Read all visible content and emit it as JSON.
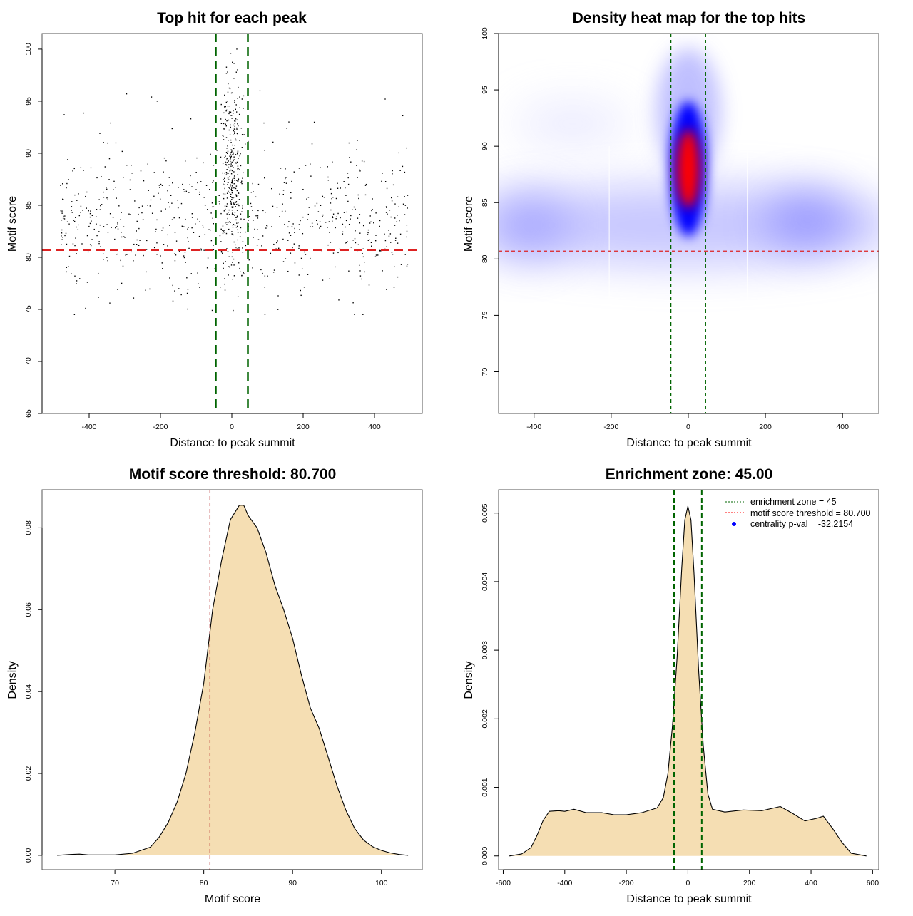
{
  "chart_data": [
    {
      "type": "scatter",
      "title": "Top hit for each peak",
      "xlabel": "Distance to peak summit",
      "ylabel": "Motif score",
      "xlim": [
        -532,
        534
      ],
      "ylim": [
        65,
        101.5
      ],
      "xticks": [
        -400,
        -200,
        0,
        200,
        400
      ],
      "yticks": [
        65,
        70,
        75,
        80,
        85,
        90,
        95,
        100
      ],
      "enrichment_zone": [
        -45,
        45
      ],
      "threshold": 80.7,
      "points": [
        [
          -480,
          86.9
        ],
        [
          -470,
          93.7
        ],
        [
          -465,
          82.3
        ],
        [
          -460,
          89.4
        ],
        [
          -455,
          80.1
        ],
        [
          -450,
          84.5
        ],
        [
          -440,
          78.2
        ],
        [
          -430,
          86.1
        ],
        [
          -420,
          81.3
        ],
        [
          -410,
          75.1
        ],
        [
          -405,
          77.6
        ],
        [
          -395,
          88.6
        ],
        [
          -380,
          83.2
        ],
        [
          -370,
          91.9
        ],
        [
          -360,
          79.8
        ],
        [
          -350,
          85.7
        ],
        [
          -340,
          92.9
        ],
        [
          -330,
          87.3
        ],
        [
          -320,
          76.9
        ],
        [
          -310,
          82.4
        ],
        [
          -295,
          95.7
        ],
        [
          -285,
          84.1
        ],
        [
          -270,
          80.2
        ],
        [
          -255,
          88.3
        ],
        [
          -240,
          78.6
        ],
        [
          -225,
          95.4
        ],
        [
          -210,
          83.6
        ],
        [
          -195,
          86.9
        ],
        [
          -180,
          81.1
        ],
        [
          -165,
          75.8
        ],
        [
          -150,
          84.8
        ],
        [
          -130,
          79.5
        ],
        [
          -115,
          93.3
        ],
        [
          -100,
          86.5
        ],
        [
          -90,
          77.1
        ],
        [
          -80,
          82.9
        ],
        [
          -60,
          89.9
        ],
        [
          -55,
          74.9
        ],
        [
          -30,
          84.2
        ],
        [
          -25,
          82.3
        ],
        [
          -20,
          88.1
        ],
        [
          -18,
          79.6
        ],
        [
          -15,
          91.5
        ],
        [
          -12,
          97.8
        ],
        [
          -10,
          86.7
        ],
        [
          -8,
          93.8
        ],
        [
          -5,
          96.2
        ],
        [
          -3,
          99.6
        ],
        [
          0,
          90.3
        ],
        [
          2,
          87.5
        ],
        [
          4,
          92.7
        ],
        [
          6,
          85.1
        ],
        [
          8,
          94.9
        ],
        [
          10,
          89.1
        ],
        [
          12,
          83.6
        ],
        [
          14,
          100
        ],
        [
          15,
          91.9
        ],
        [
          18,
          86.2
        ],
        [
          20,
          80.9
        ],
        [
          22,
          95.4
        ],
        [
          25,
          88.8
        ],
        [
          30,
          84.7
        ],
        [
          35,
          78.4
        ],
        [
          60,
          86.3
        ],
        [
          75,
          81.7
        ],
        [
          90,
          92.9
        ],
        [
          100,
          78.2
        ],
        [
          115,
          84.9
        ],
        [
          130,
          76.3
        ],
        [
          150,
          88.5
        ],
        [
          165,
          82.1
        ],
        [
          160,
          93.0
        ],
        [
          195,
          79.9
        ],
        [
          210,
          85.6
        ],
        [
          225,
          90.9
        ],
        [
          240,
          83.2
        ],
        [
          255,
          77.8
        ],
        [
          270,
          87.7
        ],
        [
          285,
          80.4
        ],
        [
          300,
          75.9
        ],
        [
          315,
          84.3
        ],
        [
          330,
          89.6
        ],
        [
          345,
          81.8
        ],
        [
          360,
          78.7
        ],
        [
          375,
          86.9
        ],
        [
          390,
          83.4
        ],
        [
          405,
          80.2
        ],
        [
          420,
          87.3
        ],
        [
          430,
          95.2
        ],
        [
          440,
          82.6
        ],
        [
          455,
          77.1
        ],
        [
          465,
          85.8
        ],
        [
          475,
          79.3
        ],
        [
          485,
          84.1
        ],
        [
          490,
          90.5
        ]
      ],
      "cloud": {
        "background_points": 650,
        "central_points": 300,
        "background_mean_score": 83.5,
        "background_sd": 3.2,
        "central_sd_distance": 16,
        "central_mean_score": 88,
        "central_sd_score": 4.5
      }
    },
    {
      "type": "heatmap",
      "title": "Density heat map for the top hits",
      "xlabel": "Distance to peak summit",
      "ylabel": "Motif score",
      "xlim": [
        -492,
        494
      ],
      "ylim": [
        66.3,
        100
      ],
      "xticks": [
        -400,
        -200,
        0,
        200,
        400
      ],
      "yticks": [
        70,
        75,
        80,
        85,
        90,
        95,
        100
      ],
      "enrichment_zone": [
        -45,
        45
      ],
      "threshold": 80.7,
      "peak_density_at": [
        0,
        88
      ],
      "colors": {
        "low": "#ffffff",
        "mid": "#0000ff",
        "high": "#ff0000"
      }
    },
    {
      "type": "area",
      "title": "Motif score threshold: 80.700",
      "xlabel": "Motif score",
      "ylabel": "Density",
      "xlim": [
        61.8,
        104.6
      ],
      "ylim": [
        -0.0035,
        0.0893
      ],
      "xticks": [
        70,
        80,
        90,
        100
      ],
      "yticks": [
        0.0,
        0.02,
        0.04,
        0.06,
        0.08
      ],
      "ytick_labels": [
        "0.00",
        "0.02",
        "0.04",
        "0.06",
        "0.08"
      ],
      "threshold": 80.7,
      "fill": "#f5deb3",
      "x": [
        63.5,
        65,
        66,
        67,
        70,
        72,
        74,
        75,
        76,
        77,
        78,
        79,
        80,
        81,
        82,
        83,
        84,
        84.5,
        85,
        86,
        87,
        88,
        89,
        90,
        91,
        92,
        93,
        94,
        95,
        96,
        97,
        98,
        99,
        100,
        101,
        102,
        103
      ],
      "y": [
        0,
        0.0002,
        0.0003,
        0.0001,
        0.0001,
        0.0005,
        0.002,
        0.0045,
        0.008,
        0.013,
        0.02,
        0.03,
        0.042,
        0.06,
        0.072,
        0.082,
        0.0855,
        0.0855,
        0.083,
        0.08,
        0.074,
        0.066,
        0.06,
        0.053,
        0.044,
        0.036,
        0.031,
        0.024,
        0.017,
        0.011,
        0.0065,
        0.0037,
        0.0021,
        0.0012,
        0.0006,
        0.0002,
        0
      ]
    },
    {
      "type": "area",
      "title": "Enrichment zone: 45.00",
      "xlabel": "Distance to peak summit",
      "ylabel": "Density",
      "xlim": [
        -615,
        620
      ],
      "ylim": [
        -0.0002,
        0.00534
      ],
      "xticks": [
        -600,
        -400,
        -200,
        0,
        200,
        400,
        600
      ],
      "yticks": [
        0,
        0.001,
        0.002,
        0.003,
        0.004,
        0.005
      ],
      "ytick_labels": [
        "0.000",
        "0.001",
        "0.002",
        "0.003",
        "0.004",
        "0.005"
      ],
      "enrichment_zone": [
        -45,
        45
      ],
      "fill": "#f5deb3",
      "x": [
        -580,
        -540,
        -510,
        -490,
        -470,
        -450,
        -420,
        -400,
        -370,
        -330,
        -280,
        -240,
        -200,
        -150,
        -100,
        -80,
        -65,
        -50,
        -35,
        -20,
        -10,
        0,
        10,
        20,
        35,
        50,
        65,
        80,
        120,
        180,
        240,
        300,
        340,
        380,
        420,
        440,
        470,
        500,
        530,
        580
      ],
      "y": [
        0,
        3e-05,
        0.00012,
        0.0003,
        0.00052,
        0.00065,
        0.00066,
        0.00065,
        0.00068,
        0.00063,
        0.00063,
        0.0006,
        0.0006,
        0.00063,
        0.0007,
        0.00085,
        0.0012,
        0.0019,
        0.0029,
        0.0042,
        0.0049,
        0.0051,
        0.0049,
        0.0041,
        0.0027,
        0.0016,
        0.0009,
        0.00068,
        0.00064,
        0.00067,
        0.00066,
        0.00072,
        0.00062,
        0.00051,
        0.00055,
        0.00058,
        0.0004,
        0.0002,
        4e-05,
        0
      ],
      "legend": {
        "position": "top-right",
        "entries": [
          {
            "label": "enrichment zone = 45",
            "color": "#006400",
            "style": "dotted-line"
          },
          {
            "label": "motif score threshold = 80.700",
            "color": "#ff0000",
            "style": "dotted-line"
          },
          {
            "label": "centrality p-val = -32.2154",
            "color": "#0000ff",
            "style": "point"
          }
        ]
      }
    }
  ]
}
